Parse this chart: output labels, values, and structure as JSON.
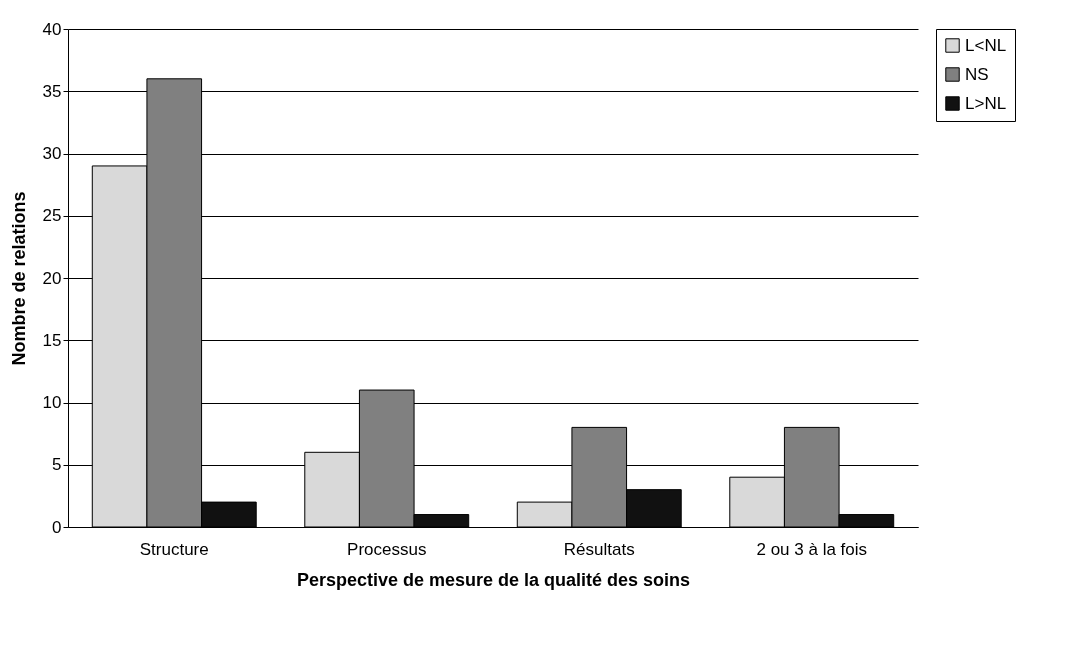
{
  "chart_data": {
    "type": "bar",
    "xlabel": "Perspective de mesure de la qualité des soins",
    "ylabel": "Nombre de relations",
    "categories": [
      "Structure",
      "Processus",
      "Résultats",
      "2 ou 3 à la fois"
    ],
    "series": [
      {
        "name": "L<NL",
        "color": "#d9d9d9",
        "values": [
          29,
          6,
          2,
          4
        ]
      },
      {
        "name": "NS",
        "color": "#808080",
        "values": [
          36,
          11,
          8,
          8
        ]
      },
      {
        "name": "L>NL",
        "color": "#111111",
        "values": [
          2,
          1,
          3,
          1
        ]
      }
    ],
    "ylim": [
      0,
      40
    ],
    "yticks": [
      0,
      5,
      10,
      15,
      20,
      25,
      30,
      35,
      40
    ],
    "grid": "y",
    "legend": "right"
  }
}
